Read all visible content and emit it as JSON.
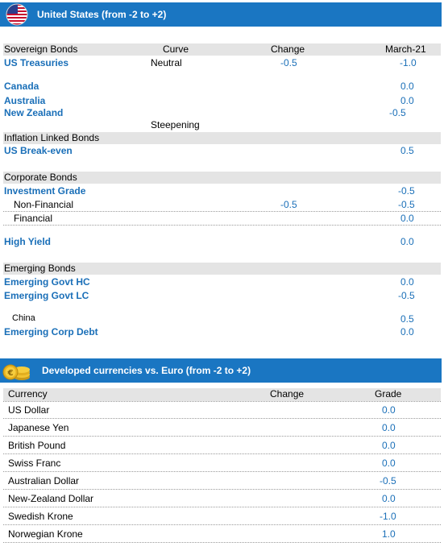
{
  "us_section": {
    "title": "United States (from -2 to +2)",
    "headers": {
      "c1": "Sovereign Bonds",
      "c2": "Curve",
      "c3": "Change",
      "c4": "March-21"
    },
    "sovereign": [
      {
        "label": "US Treasuries",
        "curve": "Neutral",
        "change": "-0.5",
        "value": "-1.0"
      },
      {
        "label": "Canada",
        "curve": "",
        "change": "",
        "value": "0.0"
      },
      {
        "label": "Australia",
        "curve": "",
        "change": "",
        "value": "0.0"
      },
      {
        "label": "New Zealand",
        "curve": "",
        "change": "",
        "value": "-0.5"
      }
    ],
    "steepening_note": "Steepening",
    "inflation_header": "Inflation Linked Bonds",
    "inflation": [
      {
        "label": "US Break-even",
        "value": "0.5"
      }
    ],
    "corporate_header": "Corporate Bonds",
    "corporate": {
      "investment_grade": {
        "label": "Investment Grade",
        "value": "-0.5"
      },
      "non_financial": {
        "label": "Non-Financial",
        "change": "-0.5",
        "value": "-0.5"
      },
      "financial": {
        "label": "Financial",
        "value": "0.0"
      },
      "high_yield": {
        "label": "High Yield",
        "value": "0.0"
      }
    },
    "emerging_header": "Emerging Bonds",
    "emerging": {
      "govt_hc": {
        "label": "Emerging Govt HC",
        "value": "0.0"
      },
      "govt_lc": {
        "label": "Emerging Govt LC",
        "value": "-0.5"
      },
      "china": {
        "label": "China",
        "value": "0.5"
      },
      "corp_debt": {
        "label": "Emerging Corp Debt",
        "value": "0.0"
      }
    }
  },
  "fx_section": {
    "title": "Developed currencies vs. Euro (from -2 to +2)",
    "headers": {
      "c1": "Currency",
      "c2": "Change",
      "c3": "Grade"
    },
    "rows": [
      {
        "label": "US Dollar",
        "change": "",
        "grade": "0.0"
      },
      {
        "label": "Japanese Yen",
        "change": "",
        "grade": "0.0"
      },
      {
        "label": "British Pound",
        "change": "",
        "grade": "0.0"
      },
      {
        "label": "Swiss Franc",
        "change": "",
        "grade": "0.0"
      },
      {
        "label": "Australian Dollar",
        "change": "",
        "grade": "-0.5"
      },
      {
        "label": "New-Zealand Dollar",
        "change": "",
        "grade": "0.0"
      },
      {
        "label": "Swedish Krone",
        "change": "",
        "grade": "-1.0"
      },
      {
        "label": "Norwegian Krone",
        "change": "",
        "grade": "1.0"
      }
    ]
  },
  "icons": {
    "flag": "us-flag-icon",
    "coins": "euro-coins-icon"
  },
  "colors": {
    "banner": "#1a76c2",
    "label_blue": "#1a6fb8",
    "header_grey": "#e4e4e4"
  }
}
